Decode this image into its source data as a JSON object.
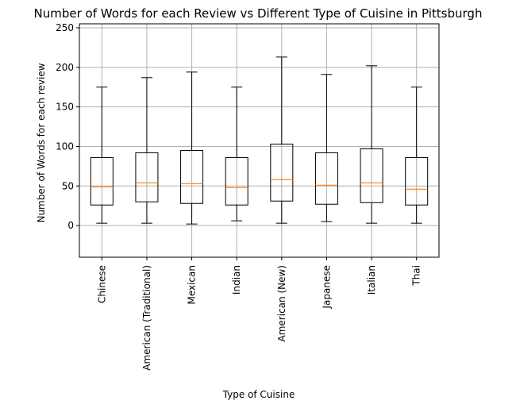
{
  "chart_data": {
    "type": "boxplot",
    "title": "Number of Words for each Review vs Different Type of Cuisine in Pittsburgh",
    "xlabel": "Type of Cuisine",
    "ylabel": "Number of Words for each review",
    "ylim": [
      -40,
      255
    ],
    "yticks": [
      0,
      50,
      100,
      150,
      200,
      250
    ],
    "grid": true,
    "median_color": "#ff7f0e",
    "box_color": "#000000",
    "grid_color": "#b0b0b0",
    "categories": [
      "Chinese",
      "American (Traditional)",
      "Mexican",
      "Indian",
      "American (New)",
      "Japanese",
      "Italian",
      "Thai"
    ],
    "boxes": [
      {
        "whislo": 3,
        "q1": 26,
        "med": 49,
        "q3": 86,
        "whishi": 175
      },
      {
        "whislo": 3,
        "q1": 30,
        "med": 54,
        "q3": 92,
        "whishi": 187
      },
      {
        "whislo": 2,
        "q1": 28,
        "med": 53,
        "q3": 95,
        "whishi": 194
      },
      {
        "whislo": 6,
        "q1": 26,
        "med": 48,
        "q3": 86,
        "whishi": 175
      },
      {
        "whislo": 3,
        "q1": 31,
        "med": 58,
        "q3": 103,
        "whishi": 213
      },
      {
        "whislo": 5,
        "q1": 27,
        "med": 51,
        "q3": 92,
        "whishi": 191
      },
      {
        "whislo": 3,
        "q1": 29,
        "med": 54,
        "q3": 97,
        "whishi": 202
      },
      {
        "whislo": 3,
        "q1": 26,
        "med": 46,
        "q3": 86,
        "whishi": 175
      }
    ]
  }
}
